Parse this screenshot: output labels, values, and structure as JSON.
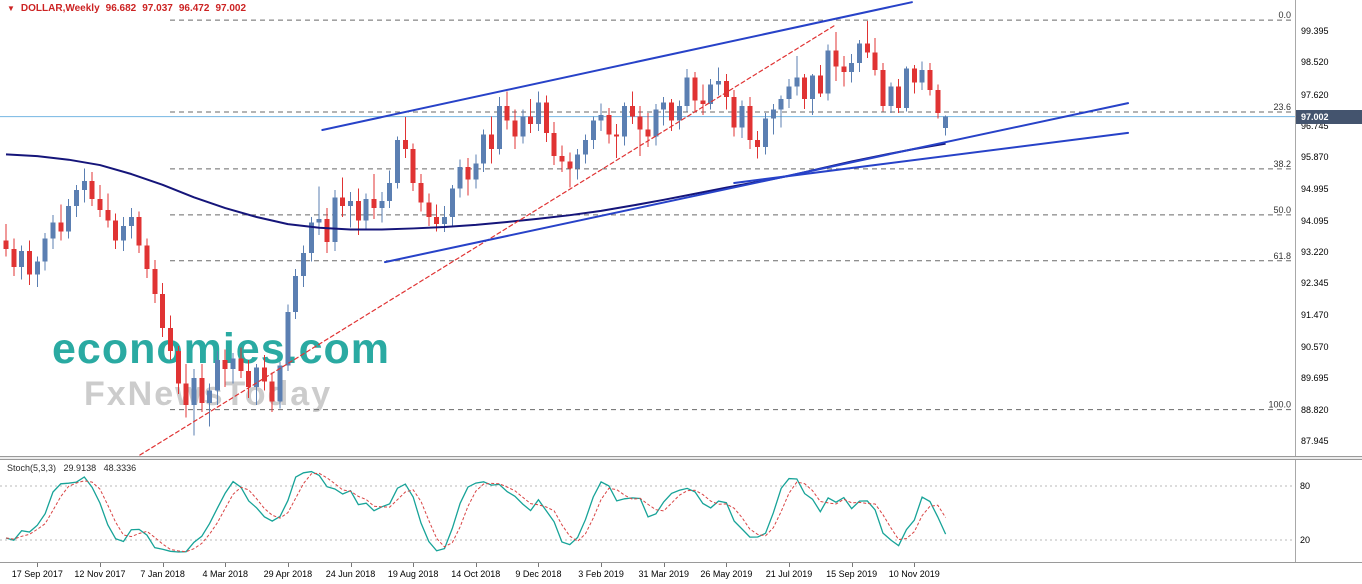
{
  "infobar": {
    "marker": "▼",
    "title": "DOLLAR,Weekly",
    "open": "96.682",
    "high": "97.037",
    "low": "96.472",
    "close": "97.002"
  },
  "watermark": {
    "line1": "economies.com",
    "line2": "FxNewsToday"
  },
  "colors": {
    "info_red": "#cc2323",
    "bull": "#5b7fb2",
    "bear": "#e03333",
    "ma": "#15157a",
    "channel_blue": "#2742c8",
    "trend_red": "#e03333",
    "price_line": "#74b6e2",
    "price_box_bg": "#44546e",
    "fib_line": "#6a6a6a",
    "stoch_k": "#17a398",
    "stoch_d": "#d94545",
    "watermark_teal": "#2aaaa2",
    "watermark_gray": "#cccccc"
  },
  "chart_data": {
    "type": "candlestick",
    "symbol": "DOLLAR",
    "timeframe": "Weekly",
    "start_date": "2017-08-20",
    "interval_days": 7,
    "current_price": 97.002,
    "current_price_label": "97.002",
    "price_axis_labels": [
      "99.395",
      "98.520",
      "97.620",
      "96.745",
      "95.870",
      "94.995",
      "94.095",
      "93.220",
      "92.345",
      "91.470",
      "90.570",
      "89.695",
      "88.820",
      "87.945"
    ],
    "fib_levels": [
      {
        "label": "0.0",
        "price": 99.7
      },
      {
        "label": "23.6",
        "price": 97.132
      },
      {
        "label": "38.2",
        "price": 95.544
      },
      {
        "label": "50.0",
        "price": 94.26
      },
      {
        "label": "61.8",
        "price": 92.976
      },
      {
        "label": "100.0",
        "price": 88.82
      }
    ],
    "candles": [
      [
        93.55,
        94.0,
        93.1,
        93.3
      ],
      [
        93.3,
        93.6,
        92.55,
        92.8
      ],
      [
        92.8,
        93.4,
        92.45,
        93.25
      ],
      [
        93.25,
        93.55,
        92.3,
        92.6
      ],
      [
        92.6,
        93.1,
        92.25,
        92.95
      ],
      [
        92.95,
        93.75,
        92.7,
        93.6
      ],
      [
        93.6,
        94.25,
        93.3,
        94.05
      ],
      [
        94.05,
        94.55,
        93.55,
        93.8
      ],
      [
        93.8,
        94.7,
        93.6,
        94.5
      ],
      [
        94.5,
        95.1,
        94.2,
        94.95
      ],
      [
        94.95,
        95.55,
        94.6,
        95.2
      ],
      [
        95.2,
        95.45,
        94.5,
        94.7
      ],
      [
        94.7,
        95.1,
        94.2,
        94.4
      ],
      [
        94.4,
        94.85,
        93.9,
        94.1
      ],
      [
        94.1,
        94.3,
        93.3,
        93.55
      ],
      [
        93.55,
        94.2,
        93.25,
        93.95
      ],
      [
        93.95,
        94.45,
        93.6,
        94.2
      ],
      [
        94.2,
        94.35,
        93.2,
        93.4
      ],
      [
        93.4,
        93.6,
        92.5,
        92.75
      ],
      [
        92.75,
        93.0,
        91.8,
        92.05
      ],
      [
        92.05,
        92.35,
        90.85,
        91.1
      ],
      [
        91.1,
        91.45,
        90.2,
        90.45
      ],
      [
        90.45,
        90.6,
        89.25,
        89.55
      ],
      [
        89.55,
        90.1,
        88.6,
        88.95
      ],
      [
        88.95,
        89.95,
        88.1,
        89.7
      ],
      [
        89.7,
        90.1,
        88.75,
        89.0
      ],
      [
        89.0,
        89.55,
        88.35,
        89.35
      ],
      [
        89.35,
        90.45,
        88.95,
        90.2
      ],
      [
        90.2,
        90.5,
        89.45,
        89.95
      ],
      [
        89.95,
        90.4,
        89.55,
        90.25
      ],
      [
        90.25,
        90.55,
        89.7,
        89.9
      ],
      [
        89.9,
        90.2,
        89.15,
        89.45
      ],
      [
        89.45,
        90.1,
        88.95,
        90.0
      ],
      [
        90.0,
        90.35,
        89.35,
        89.6
      ],
      [
        89.6,
        89.85,
        88.75,
        89.05
      ],
      [
        89.05,
        90.15,
        88.85,
        90.05
      ],
      [
        90.05,
        91.75,
        89.9,
        91.55
      ],
      [
        91.55,
        92.75,
        91.35,
        92.55
      ],
      [
        92.55,
        93.4,
        92.25,
        93.2
      ],
      [
        93.2,
        94.2,
        92.95,
        94.05
      ],
      [
        94.05,
        95.05,
        93.7,
        94.15
      ],
      [
        94.15,
        94.45,
        93.2,
        93.5
      ],
      [
        93.5,
        94.95,
        93.25,
        94.75
      ],
      [
        94.75,
        95.3,
        94.2,
        94.5
      ],
      [
        94.5,
        94.9,
        93.9,
        94.65
      ],
      [
        94.65,
        95.0,
        93.7,
        94.1
      ],
      [
        94.1,
        94.85,
        93.85,
        94.7
      ],
      [
        94.7,
        95.4,
        94.15,
        94.45
      ],
      [
        94.45,
        94.9,
        94.05,
        94.65
      ],
      [
        94.65,
        95.5,
        94.45,
        95.15
      ],
      [
        95.15,
        96.45,
        95.0,
        96.35
      ],
      [
        96.35,
        96.99,
        95.85,
        96.1
      ],
      [
        96.1,
        96.25,
        94.93,
        95.15
      ],
      [
        95.15,
        95.4,
        94.35,
        94.6
      ],
      [
        94.6,
        94.85,
        93.95,
        94.2
      ],
      [
        94.2,
        94.55,
        93.8,
        94.0
      ],
      [
        94.0,
        94.5,
        93.78,
        94.2
      ],
      [
        94.2,
        95.1,
        93.95,
        95.0
      ],
      [
        95.0,
        95.8,
        94.75,
        95.6
      ],
      [
        95.6,
        95.85,
        94.8,
        95.25
      ],
      [
        95.25,
        95.95,
        95.0,
        95.7
      ],
      [
        95.7,
        96.65,
        95.45,
        96.5
      ],
      [
        96.5,
        97.0,
        95.7,
        96.1
      ],
      [
        96.1,
        97.55,
        95.95,
        97.3
      ],
      [
        97.3,
        97.7,
        96.65,
        96.9
      ],
      [
        96.9,
        97.2,
        96.1,
        96.45
      ],
      [
        96.45,
        97.2,
        96.25,
        97.0
      ],
      [
        97.0,
        97.5,
        96.55,
        96.8
      ],
      [
        96.8,
        97.71,
        96.6,
        97.4
      ],
      [
        97.4,
        97.6,
        96.3,
        96.55
      ],
      [
        96.55,
        96.85,
        95.65,
        95.9
      ],
      [
        95.9,
        96.2,
        95.45,
        95.75
      ],
      [
        95.75,
        96.0,
        95.03,
        95.55
      ],
      [
        95.55,
        96.1,
        95.25,
        95.95
      ],
      [
        95.95,
        96.5,
        95.7,
        96.35
      ],
      [
        96.35,
        97.0,
        96.1,
        96.9
      ],
      [
        96.9,
        97.37,
        96.6,
        97.05
      ],
      [
        97.05,
        97.25,
        96.25,
        96.5
      ],
      [
        96.5,
        96.8,
        95.85,
        96.45
      ],
      [
        96.45,
        97.4,
        96.2,
        97.3
      ],
      [
        97.3,
        97.71,
        96.8,
        97.0
      ],
      [
        97.0,
        97.3,
        95.9,
        96.65
      ],
      [
        96.65,
        97.1,
        96.15,
        96.45
      ],
      [
        96.45,
        97.35,
        96.2,
        97.2
      ],
      [
        97.2,
        97.55,
        96.75,
        97.4
      ],
      [
        97.4,
        97.5,
        96.6,
        96.9
      ],
      [
        96.9,
        97.45,
        96.65,
        97.3
      ],
      [
        97.3,
        98.33,
        97.15,
        98.1
      ],
      [
        98.1,
        98.25,
        97.15,
        97.45
      ],
      [
        97.45,
        97.9,
        97.05,
        97.35
      ],
      [
        97.35,
        98.05,
        97.2,
        97.9
      ],
      [
        97.9,
        98.37,
        97.6,
        98.0
      ],
      [
        98.0,
        98.2,
        97.2,
        97.55
      ],
      [
        97.55,
        97.75,
        96.45,
        96.7
      ],
      [
        96.7,
        97.45,
        96.4,
        97.3
      ],
      [
        97.3,
        97.55,
        96.1,
        96.35
      ],
      [
        96.35,
        96.6,
        95.84,
        96.15
      ],
      [
        96.15,
        97.1,
        95.95,
        96.95
      ],
      [
        96.95,
        97.35,
        96.5,
        97.2
      ],
      [
        97.2,
        97.6,
        96.7,
        97.5
      ],
      [
        97.5,
        98.05,
        97.25,
        97.85
      ],
      [
        97.85,
        98.7,
        97.6,
        98.1
      ],
      [
        98.1,
        98.2,
        97.21,
        97.5
      ],
      [
        97.5,
        98.2,
        97.05,
        98.15
      ],
      [
        98.15,
        98.45,
        97.55,
        97.65
      ],
      [
        97.65,
        99.02,
        97.45,
        98.85
      ],
      [
        98.85,
        99.37,
        98.0,
        98.4
      ],
      [
        98.4,
        98.7,
        97.85,
        98.25
      ],
      [
        98.25,
        98.75,
        97.95,
        98.5
      ],
      [
        98.5,
        99.15,
        98.25,
        99.05
      ],
      [
        99.05,
        99.67,
        98.64,
        98.8
      ],
      [
        98.8,
        99.2,
        98.15,
        98.3
      ],
      [
        98.3,
        98.5,
        97.15,
        97.3
      ],
      [
        97.3,
        97.95,
        97.1,
        97.85
      ],
      [
        97.85,
        98.05,
        97.1,
        97.25
      ],
      [
        97.25,
        98.4,
        97.15,
        98.35
      ],
      [
        98.35,
        98.45,
        97.65,
        97.95
      ],
      [
        97.95,
        98.55,
        97.75,
        98.3
      ],
      [
        98.3,
        98.5,
        97.6,
        97.75
      ],
      [
        97.75,
        97.9,
        96.95,
        97.1
      ],
      [
        96.682,
        97.037,
        96.472,
        97.002
      ]
    ],
    "ma_line": {
      "name": "moving-average",
      "points": [
        [
          0,
          95.95
        ],
        [
          4,
          95.9
        ],
        [
          8,
          95.8
        ],
        [
          12,
          95.65
        ],
        [
          16,
          95.4
        ],
        [
          20,
          95.1
        ],
        [
          24,
          94.75
        ],
        [
          28,
          94.45
        ],
        [
          32,
          94.2
        ],
        [
          36,
          94.0
        ],
        [
          40,
          93.9
        ],
        [
          44,
          93.85
        ],
        [
          48,
          93.85
        ],
        [
          52,
          93.88
        ],
        [
          56,
          93.92
        ],
        [
          60,
          93.98
        ],
        [
          64,
          94.06
        ],
        [
          68,
          94.15
        ],
        [
          72,
          94.25
        ],
        [
          76,
          94.37
        ],
        [
          80,
          94.52
        ],
        [
          84,
          94.68
        ],
        [
          88,
          94.85
        ],
        [
          92,
          95.02
        ],
        [
          96,
          95.18
        ],
        [
          100,
          95.35
        ],
        [
          104,
          95.55
        ],
        [
          108,
          95.75
        ],
        [
          112,
          95.93
        ],
        [
          116,
          96.1
        ],
        [
          120,
          96.25
        ]
      ]
    },
    "channel_top": {
      "from": [
        40.4,
        96.63
      ],
      "to": [
        115.7,
        100.2
      ]
    },
    "channel_bottom": {
      "from": [
        48.4,
        92.94
      ],
      "to": [
        143.3,
        97.38
      ]
    },
    "inner_support": {
      "from": [
        93.0,
        95.15
      ],
      "to": [
        143.3,
        96.55
      ]
    },
    "red_trendline": {
      "from": [
        17.1,
        87.55
      ],
      "to": [
        105.9,
        99.56
      ]
    },
    "date_labels": [
      {
        "i": 4,
        "text": "17 Sep 2017"
      },
      {
        "i": 12,
        "text": "12 Nov 2017"
      },
      {
        "i": 20,
        "text": "7 Jan 2018"
      },
      {
        "i": 28,
        "text": "4 Mar 2018"
      },
      {
        "i": 36,
        "text": "29 Apr 2018"
      },
      {
        "i": 44,
        "text": "24 Jun 2018"
      },
      {
        "i": 52,
        "text": "19 Aug 2018"
      },
      {
        "i": 60,
        "text": "14 Oct 2018"
      },
      {
        "i": 68,
        "text": "9 Dec 2018"
      },
      {
        "i": 76,
        "text": "3 Feb 2019"
      },
      {
        "i": 84,
        "text": "31 Mar 2019"
      },
      {
        "i": 92,
        "text": "26 May 2019"
      },
      {
        "i": 100,
        "text": "21 Jul 2019"
      },
      {
        "i": 108,
        "text": "15 Sep 2019"
      },
      {
        "i": 116,
        "text": "10 Nov 2019"
      }
    ],
    "stoch": {
      "label": "Stoch(5,3,3)",
      "k_value": "29.9138",
      "d_value": "48.3336",
      "period_k": 5,
      "slowing": 3,
      "period_d": 3,
      "levels": [
        "80",
        "20"
      ]
    }
  }
}
